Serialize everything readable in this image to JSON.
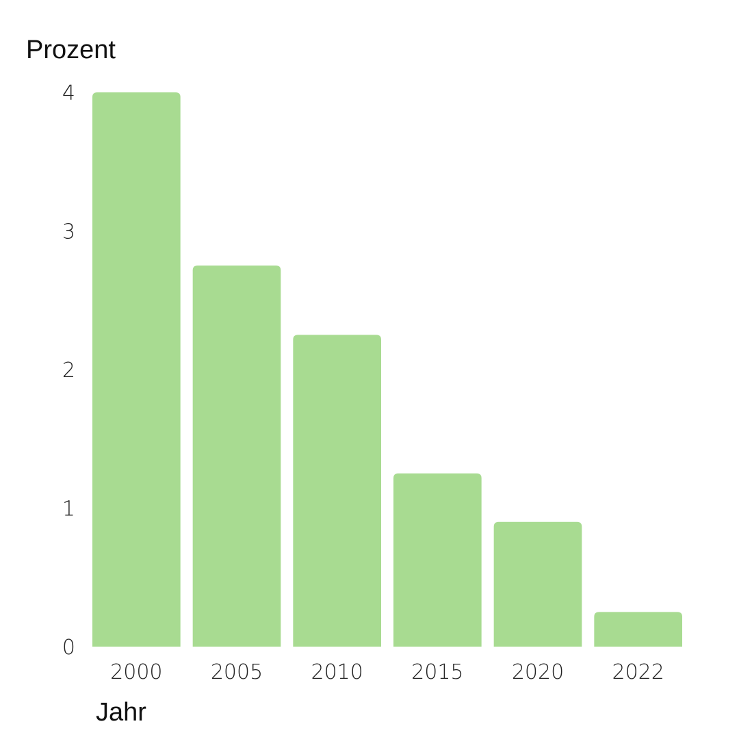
{
  "chart_data": {
    "type": "bar",
    "categories": [
      "2000",
      "2005",
      "2010",
      "2015",
      "2020",
      "2022"
    ],
    "values": [
      4.0,
      2.75,
      2.25,
      1.25,
      0.9,
      0.25
    ],
    "ylabel": "Prozent",
    "xlabel": "Jahr",
    "ylim": [
      0,
      4
    ],
    "yticks": [
      "0",
      "1",
      "2",
      "3",
      "4"
    ],
    "grid": false,
    "bar_color": "#a8db91",
    "background": "#ffffff"
  }
}
